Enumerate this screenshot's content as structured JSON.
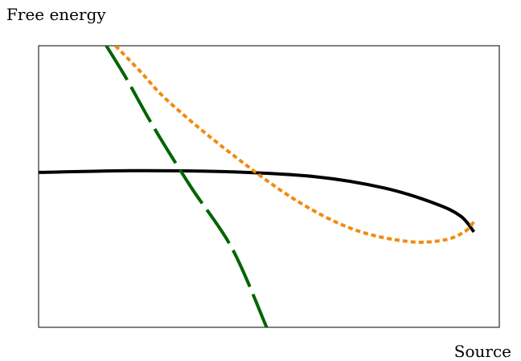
{
  "chart_data": {
    "type": "line",
    "title": "",
    "ylabel": "Free energy",
    "xlabel": "Source",
    "xlim": [
      0,
      100
    ],
    "ylim": [
      0,
      100
    ],
    "grid": false,
    "series": [
      {
        "color": "#000000",
        "dash": "solid",
        "points": [
          [
            0,
            55
          ],
          [
            20,
            55.6
          ],
          [
            40,
            55.3
          ],
          [
            60,
            53.5
          ],
          [
            75,
            49.5
          ],
          [
            86,
            44
          ],
          [
            91.6,
            39.5
          ],
          [
            94.5,
            33.9
          ]
        ]
      },
      {
        "color": "#f28a0f",
        "dash": "dotted",
        "points": [
          [
            16.7,
            100
          ],
          [
            22,
            91
          ],
          [
            28,
            80.5
          ],
          [
            40,
            64
          ],
          [
            55,
            46
          ],
          [
            68,
            35
          ],
          [
            80,
            30.5
          ],
          [
            88,
            31
          ],
          [
            92.5,
            34
          ],
          [
            94.5,
            37.5
          ]
        ]
      },
      {
        "color": "#006400",
        "dash": "dashed",
        "points": [
          [
            14.7,
            100
          ],
          [
            19,
            88.5
          ],
          [
            25,
            71
          ],
          [
            33,
            50
          ],
          [
            42,
            28
          ],
          [
            49.5,
            0
          ]
        ]
      }
    ]
  }
}
